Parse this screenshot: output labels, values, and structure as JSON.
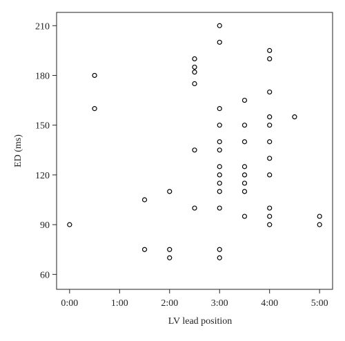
{
  "chart_data": {
    "type": "scatter",
    "xlabel": "LV lead position",
    "ylabel": "ED (ms)",
    "x": [
      0,
      0.5,
      0.5,
      1.5,
      1.5,
      2,
      2,
      2,
      2.5,
      2.5,
      2.5,
      2.5,
      2.5,
      2.5,
      3,
      3,
      3,
      3,
      3,
      3,
      3,
      3,
      3,
      3,
      3,
      3,
      3,
      3.5,
      3.5,
      3.5,
      3.5,
      3.5,
      3.5,
      3.5,
      3.5,
      4,
      4,
      4,
      4,
      4,
      4,
      4,
      4,
      4,
      4,
      4,
      4.5,
      5,
      5
    ],
    "y": [
      90,
      180,
      160,
      105,
      75,
      110,
      75,
      70,
      190,
      185,
      182,
      175,
      135,
      100,
      210,
      200,
      160,
      150,
      140,
      135,
      125,
      120,
      115,
      110,
      100,
      75,
      70,
      165,
      150,
      140,
      125,
      120,
      115,
      110,
      95,
      195,
      190,
      170,
      155,
      150,
      140,
      130,
      120,
      100,
      95,
      90,
      155,
      95,
      90
    ],
    "color": "#000000",
    "xlim": [
      -0.26,
      5.26
    ],
    "ylim": [
      51,
      218
    ],
    "xticks": [
      {
        "value": 0,
        "label": "0:00"
      },
      {
        "value": 1,
        "label": "1:00"
      },
      {
        "value": 2,
        "label": "2:00"
      },
      {
        "value": 3,
        "label": "3:00"
      },
      {
        "value": 4,
        "label": "4:00"
      },
      {
        "value": 5,
        "label": "5:00"
      }
    ],
    "yticks": [
      60,
      90,
      120,
      150,
      180,
      210
    ]
  }
}
